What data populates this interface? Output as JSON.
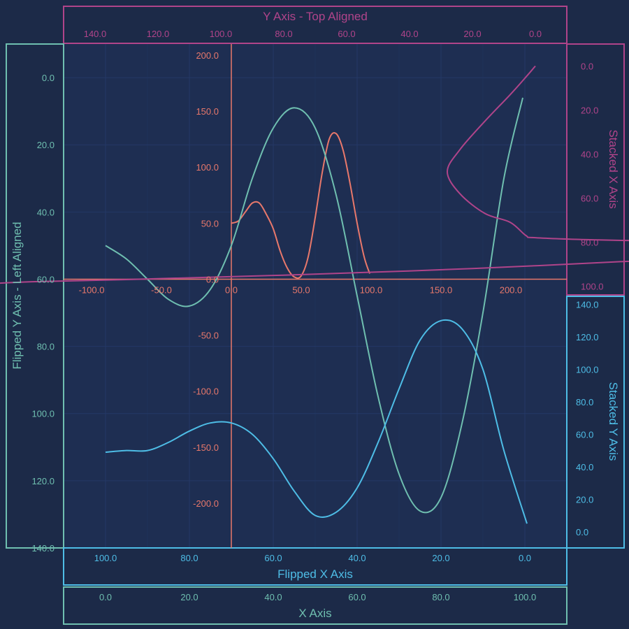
{
  "colors": {
    "background": "#1c2a48",
    "plot_background": "#1e2e52",
    "grid": "#243866",
    "orange": "#e8786b",
    "teal": "#6fbfb0",
    "blue": "#4ebde6",
    "magenta": "#b0448a"
  },
  "chart_data": {
    "type": "line",
    "axes": {
      "top_y": {
        "title": "Y Axis - Top Aligned",
        "range": [
          150,
          -10
        ],
        "ticks": [
          140,
          120,
          100,
          80,
          60,
          40,
          20,
          0
        ],
        "tick_labels": [
          "140.0",
          "120.0",
          "100.0",
          "80.0",
          "60.0",
          "40.0",
          "20.0",
          "0.0"
        ],
        "color": "magenta"
      },
      "left_y": {
        "title": "Flipped Y Axis - Left Aligned",
        "range": [
          -10,
          140
        ],
        "ticks": [
          0,
          20,
          40,
          60,
          80,
          100,
          120,
          140
        ],
        "tick_labels": [
          "0.0",
          "20.0",
          "40.0",
          "60.0",
          "80.0",
          "100.0",
          "120.0",
          "140.0"
        ],
        "color": "teal"
      },
      "right_stacked_x": {
        "title": "Stacked X Axis",
        "range": [
          -10,
          104
        ],
        "ticks": [
          0,
          20,
          40,
          60,
          80,
          100
        ],
        "tick_labels": [
          "0.0",
          "20.0",
          "40.0",
          "60.0",
          "80.0",
          "100.0"
        ],
        "color": "magenta"
      },
      "right_stacked_y": {
        "title": "Stacked Y Axis",
        "range": [
          -10,
          145
        ],
        "ticks": [
          0,
          20,
          40,
          60,
          80,
          100,
          120,
          140
        ],
        "tick_labels": [
          "0.0",
          "20.0",
          "40.0",
          "60.0",
          "80.0",
          "100.0",
          "120.0",
          "140.0"
        ],
        "color": "blue"
      },
      "bottom_flipped_x": {
        "title": "Flipped X Axis",
        "range": [
          110,
          -10
        ],
        "ticks": [
          100,
          80,
          60,
          40,
          20,
          0
        ],
        "tick_labels": [
          "100.0",
          "80.0",
          "60.0",
          "40.0",
          "20.0",
          "0.0"
        ],
        "color": "blue"
      },
      "bottom_x": {
        "title": "X Axis",
        "range": [
          -10,
          110
        ],
        "ticks": [
          0,
          20,
          40,
          60,
          80,
          100
        ],
        "tick_labels": [
          "0.0",
          "20.0",
          "40.0",
          "60.0",
          "80.0",
          "100.0"
        ],
        "color": "teal"
      },
      "center_x": {
        "range": [
          -120,
          240
        ],
        "ticks": [
          -100,
          -50,
          0,
          50,
          100,
          150,
          200
        ],
        "tick_labels": [
          "-100.0",
          "-50.0",
          "0.0",
          "50.0",
          "100.0",
          "150.0",
          "200.0"
        ],
        "color": "orange"
      },
      "center_y": {
        "range": [
          -240,
          210
        ],
        "ticks": [
          200,
          150,
          100,
          50,
          0,
          -50,
          -100,
          -150,
          -200
        ],
        "tick_labels": [
          "200.0",
          "150.0",
          "100.0",
          "50.0",
          "0.0",
          "-50.0",
          "-100.0",
          "-150.0",
          "-200.0"
        ],
        "color": "orange"
      }
    },
    "series": [
      {
        "color": "orange",
        "x": [
          0,
          5,
          10,
          15,
          20,
          25,
          30,
          35,
          40,
          45,
          50,
          55,
          60,
          65,
          70,
          75,
          80,
          85,
          90,
          95,
          99
        ],
        "y": [
          50,
          52,
          60,
          68,
          68,
          58,
          45,
          25,
          10,
          2,
          3,
          20,
          55,
          95,
          125,
          130,
          115,
          85,
          50,
          20,
          5
        ]
      },
      {
        "color": "teal",
        "x": [
          0,
          5,
          10,
          15,
          20,
          25,
          30,
          35,
          40,
          45,
          50,
          55,
          60,
          65,
          70,
          75,
          80,
          85,
          90,
          95,
          99.5
        ],
        "y": [
          50,
          54,
          60,
          66,
          68,
          63,
          50,
          30,
          15,
          9,
          15,
          35,
          65,
          95,
          118,
          129,
          125,
          103,
          70,
          30,
          6
        ]
      },
      {
        "color": "blue",
        "x": [
          -0.5,
          5,
          10,
          15,
          20,
          25,
          30,
          35,
          40,
          45,
          50,
          55,
          60,
          65,
          70,
          75,
          80,
          85,
          90,
          95,
          100
        ],
        "y": [
          5,
          50,
          100,
          125,
          130,
          118,
          88,
          55,
          27,
          12,
          10,
          25,
          45,
          60,
          67,
          67,
          62,
          55,
          50,
          50,
          49
        ]
      },
      {
        "color": "magenta",
        "x": [
          0,
          3,
          8,
          16,
          24,
          28,
          24,
          16,
          8,
          3,
          0,
          -20,
          -60,
          -100,
          -110,
          -80,
          -40,
          20,
          80,
          130,
          160,
          175
        ],
        "y": [
          0,
          5,
          13,
          25,
          38,
          48,
          58,
          67,
          71,
          77,
          78,
          79,
          80,
          80,
          82,
          85,
          88,
          92,
          95,
          97,
          98,
          99
        ]
      }
    ]
  }
}
